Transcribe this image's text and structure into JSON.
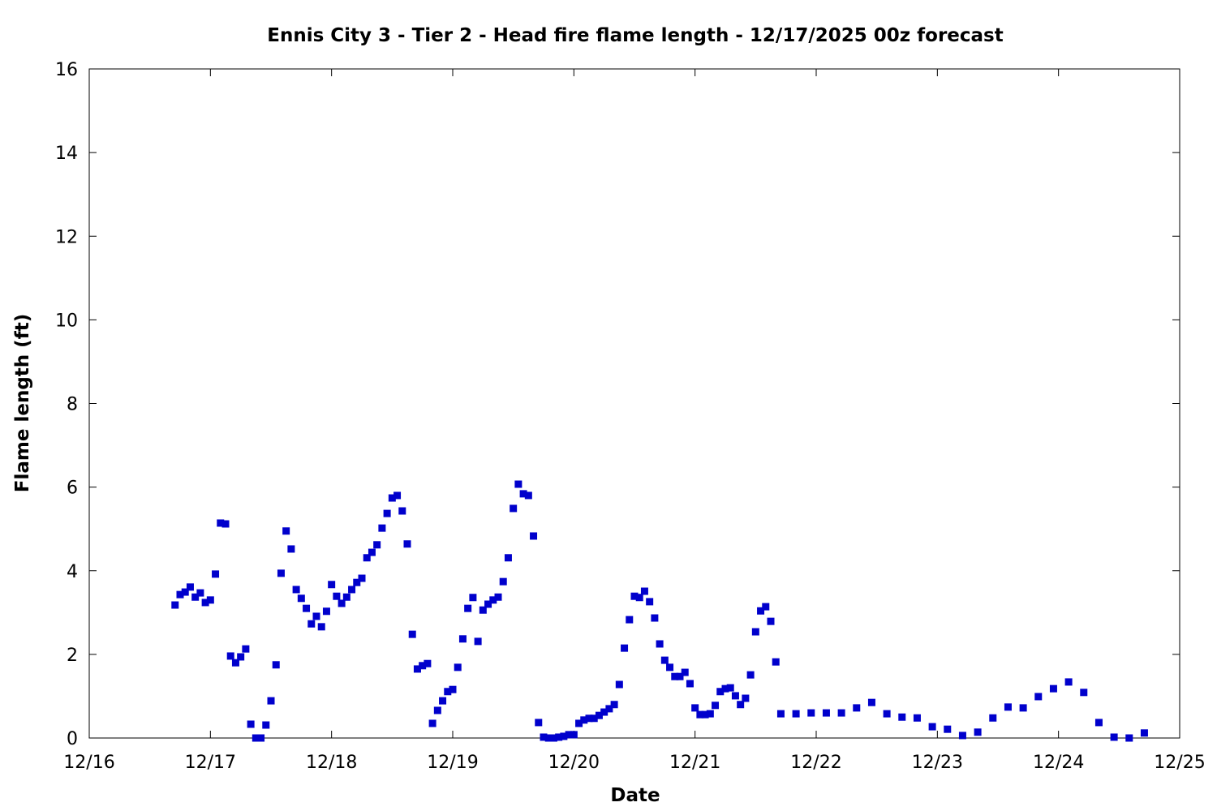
{
  "chart_data": {
    "type": "scatter",
    "title": "Ennis City 3 - Tier 2 - Head fire flame length - 12/17/2025 00z forecast",
    "xlabel": "Date",
    "ylabel": "Flame length (ft)",
    "xlim": [
      "2025-12-16T00:00",
      "2025-12-25T00:00"
    ],
    "ylim": [
      0,
      16
    ],
    "x_ticks": [
      "12/16",
      "12/17",
      "12/18",
      "12/19",
      "12/20",
      "12/21",
      "12/22",
      "12/23",
      "12/24",
      "12/25"
    ],
    "y_ticks": [
      "0",
      "2",
      "4",
      "6",
      "8",
      "10",
      "12",
      "14",
      "16"
    ],
    "grid": false,
    "marker_color": "#0000cc",
    "points": [
      [
        "2025-12-16T17:00",
        3.18
      ],
      [
        "2025-12-16T18:00",
        3.43
      ],
      [
        "2025-12-16T19:00",
        3.49
      ],
      [
        "2025-12-16T20:00",
        3.61
      ],
      [
        "2025-12-16T21:00",
        3.37
      ],
      [
        "2025-12-16T22:00",
        3.47
      ],
      [
        "2025-12-16T23:00",
        3.24
      ],
      [
        "2025-12-17T00:00",
        3.3
      ],
      [
        "2025-12-17T01:00",
        3.92
      ],
      [
        "2025-12-17T02:00",
        5.14
      ],
      [
        "2025-12-17T03:00",
        5.12
      ],
      [
        "2025-12-17T04:00",
        1.96
      ],
      [
        "2025-12-17T05:00",
        1.8
      ],
      [
        "2025-12-17T06:00",
        1.94
      ],
      [
        "2025-12-17T07:00",
        2.13
      ],
      [
        "2025-12-17T08:00",
        0.33
      ],
      [
        "2025-12-17T09:00",
        0.0
      ],
      [
        "2025-12-17T10:00",
        0.0
      ],
      [
        "2025-12-17T11:00",
        0.31
      ],
      [
        "2025-12-17T12:00",
        0.89
      ],
      [
        "2025-12-17T13:00",
        1.75
      ],
      [
        "2025-12-17T14:00",
        3.94
      ],
      [
        "2025-12-17T15:00",
        4.95
      ],
      [
        "2025-12-17T16:00",
        4.52
      ],
      [
        "2025-12-17T17:00",
        3.55
      ],
      [
        "2025-12-17T18:00",
        3.34
      ],
      [
        "2025-12-17T19:00",
        3.1
      ],
      [
        "2025-12-17T20:00",
        2.73
      ],
      [
        "2025-12-17T21:00",
        2.91
      ],
      [
        "2025-12-17T22:00",
        2.66
      ],
      [
        "2025-12-17T23:00",
        3.03
      ],
      [
        "2025-12-18T00:00",
        3.67
      ],
      [
        "2025-12-18T01:00",
        3.39
      ],
      [
        "2025-12-18T02:00",
        3.22
      ],
      [
        "2025-12-18T03:00",
        3.37
      ],
      [
        "2025-12-18T04:00",
        3.55
      ],
      [
        "2025-12-18T05:00",
        3.72
      ],
      [
        "2025-12-18T06:00",
        3.82
      ],
      [
        "2025-12-18T07:00",
        4.31
      ],
      [
        "2025-12-18T08:00",
        4.44
      ],
      [
        "2025-12-18T09:00",
        4.62
      ],
      [
        "2025-12-18T10:00",
        5.02
      ],
      [
        "2025-12-18T11:00",
        5.37
      ],
      [
        "2025-12-18T12:00",
        5.74
      ],
      [
        "2025-12-18T13:00",
        5.8
      ],
      [
        "2025-12-18T14:00",
        5.43
      ],
      [
        "2025-12-18T15:00",
        4.64
      ],
      [
        "2025-12-18T16:00",
        2.48
      ],
      [
        "2025-12-18T17:00",
        1.65
      ],
      [
        "2025-12-18T18:00",
        1.73
      ],
      [
        "2025-12-18T19:00",
        1.78
      ],
      [
        "2025-12-18T20:00",
        0.35
      ],
      [
        "2025-12-18T21:00",
        0.66
      ],
      [
        "2025-12-18T22:00",
        0.89
      ],
      [
        "2025-12-18T23:00",
        1.11
      ],
      [
        "2025-12-19T00:00",
        1.16
      ],
      [
        "2025-12-19T01:00",
        1.69
      ],
      [
        "2025-12-19T02:00",
        2.37
      ],
      [
        "2025-12-19T03:00",
        3.1
      ],
      [
        "2025-12-19T04:00",
        3.36
      ],
      [
        "2025-12-19T05:00",
        2.31
      ],
      [
        "2025-12-19T06:00",
        3.06
      ],
      [
        "2025-12-19T07:00",
        3.2
      ],
      [
        "2025-12-19T08:00",
        3.3
      ],
      [
        "2025-12-19T09:00",
        3.37
      ],
      [
        "2025-12-19T10:00",
        3.74
      ],
      [
        "2025-12-19T11:00",
        4.31
      ],
      [
        "2025-12-19T12:00",
        5.49
      ],
      [
        "2025-12-19T13:00",
        6.07
      ],
      [
        "2025-12-19T14:00",
        5.84
      ],
      [
        "2025-12-19T15:00",
        5.8
      ],
      [
        "2025-12-19T16:00",
        4.83
      ],
      [
        "2025-12-19T17:00",
        0.37
      ],
      [
        "2025-12-19T18:00",
        0.02
      ],
      [
        "2025-12-19T19:00",
        0.0
      ],
      [
        "2025-12-19T20:00",
        0.0
      ],
      [
        "2025-12-19T21:00",
        0.02
      ],
      [
        "2025-12-19T22:00",
        0.04
      ],
      [
        "2025-12-19T23:00",
        0.08
      ],
      [
        "2025-12-20T00:00",
        0.08
      ],
      [
        "2025-12-20T01:00",
        0.35
      ],
      [
        "2025-12-20T02:00",
        0.43
      ],
      [
        "2025-12-20T03:00",
        0.47
      ],
      [
        "2025-12-20T04:00",
        0.47
      ],
      [
        "2025-12-20T05:00",
        0.54
      ],
      [
        "2025-12-20T06:00",
        0.62
      ],
      [
        "2025-12-20T07:00",
        0.7
      ],
      [
        "2025-12-20T08:00",
        0.8
      ],
      [
        "2025-12-20T09:00",
        1.28
      ],
      [
        "2025-12-20T10:00",
        2.15
      ],
      [
        "2025-12-20T11:00",
        2.83
      ],
      [
        "2025-12-20T12:00",
        3.39
      ],
      [
        "2025-12-20T13:00",
        3.36
      ],
      [
        "2025-12-20T14:00",
        3.51
      ],
      [
        "2025-12-20T15:00",
        3.26
      ],
      [
        "2025-12-20T16:00",
        2.87
      ],
      [
        "2025-12-20T17:00",
        2.25
      ],
      [
        "2025-12-20T18:00",
        1.86
      ],
      [
        "2025-12-20T19:00",
        1.69
      ],
      [
        "2025-12-20T20:00",
        1.47
      ],
      [
        "2025-12-20T21:00",
        1.47
      ],
      [
        "2025-12-20T22:00",
        1.57
      ],
      [
        "2025-12-20T23:00",
        1.3
      ],
      [
        "2025-12-21T00:00",
        0.72
      ],
      [
        "2025-12-21T01:00",
        0.56
      ],
      [
        "2025-12-21T02:00",
        0.56
      ],
      [
        "2025-12-21T03:00",
        0.58
      ],
      [
        "2025-12-21T04:00",
        0.78
      ],
      [
        "2025-12-21T05:00",
        1.11
      ],
      [
        "2025-12-21T06:00",
        1.18
      ],
      [
        "2025-12-21T07:00",
        1.2
      ],
      [
        "2025-12-21T08:00",
        1.01
      ],
      [
        "2025-12-21T09:00",
        0.8
      ],
      [
        "2025-12-21T10:00",
        0.95
      ],
      [
        "2025-12-21T11:00",
        1.51
      ],
      [
        "2025-12-21T12:00",
        2.54
      ],
      [
        "2025-12-21T13:00",
        3.04
      ],
      [
        "2025-12-21T14:00",
        3.14
      ],
      [
        "2025-12-21T15:00",
        2.79
      ],
      [
        "2025-12-21T16:00",
        1.82
      ],
      [
        "2025-12-21T17:00",
        0.58
      ],
      [
        "2025-12-21T20:00",
        0.58
      ],
      [
        "2025-12-21T23:00",
        0.6
      ],
      [
        "2025-12-22T02:00",
        0.6
      ],
      [
        "2025-12-22T05:00",
        0.6
      ],
      [
        "2025-12-22T08:00",
        0.72
      ],
      [
        "2025-12-22T11:00",
        0.85
      ],
      [
        "2025-12-22T14:00",
        0.58
      ],
      [
        "2025-12-22T17:00",
        0.5
      ],
      [
        "2025-12-22T20:00",
        0.48
      ],
      [
        "2025-12-22T23:00",
        0.27
      ],
      [
        "2025-12-23T02:00",
        0.21
      ],
      [
        "2025-12-23T05:00",
        0.06
      ],
      [
        "2025-12-23T08:00",
        0.14
      ],
      [
        "2025-12-23T11:00",
        0.48
      ],
      [
        "2025-12-23T14:00",
        0.74
      ],
      [
        "2025-12-23T17:00",
        0.72
      ],
      [
        "2025-12-23T20:00",
        0.99
      ],
      [
        "2025-12-23T23:00",
        1.18
      ],
      [
        "2025-12-24T02:00",
        1.34
      ],
      [
        "2025-12-24T05:00",
        1.09
      ],
      [
        "2025-12-24T08:00",
        0.37
      ],
      [
        "2025-12-24T11:00",
        0.02
      ],
      [
        "2025-12-24T14:00",
        0.0
      ],
      [
        "2025-12-24T17:00",
        0.12
      ]
    ]
  }
}
